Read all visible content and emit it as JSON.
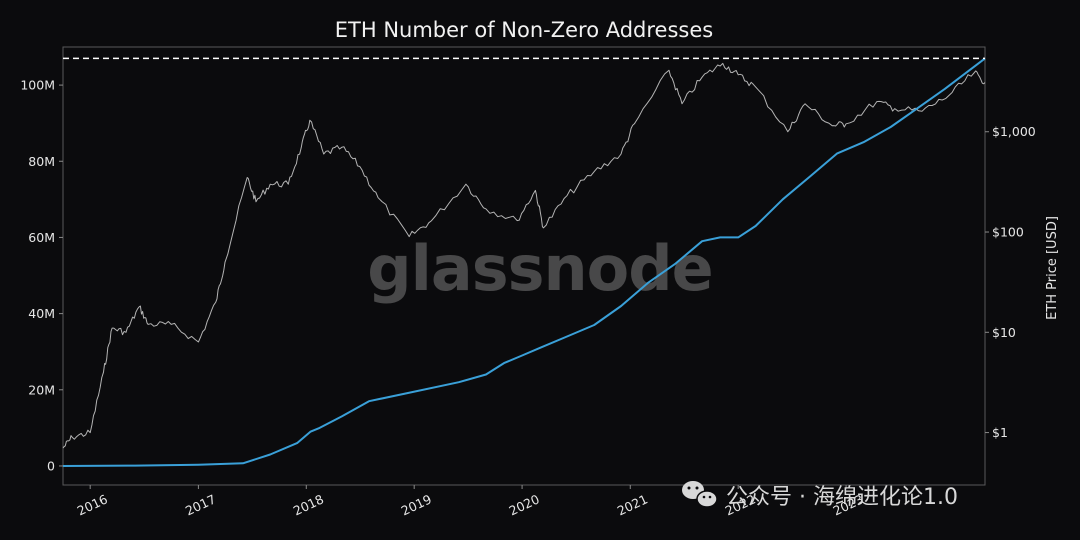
{
  "title": "ETH Number of Non-Zero Addresses",
  "watermark": "glassnode",
  "wechat_caption": "公众号 · 海绵进化论1.0",
  "colors": {
    "background": "#0b0b0d",
    "addresses_line": "#3aa0d8",
    "price_line": "#b4b4b4",
    "ath_line": "#ffffff"
  },
  "chart_data": {
    "type": "line",
    "title": "ETH Number of Non-Zero Addresses",
    "xlabel": "",
    "ylabel_left": "",
    "ylabel_right": "ETH Price [USD]",
    "x_range": [
      "2015-10-01",
      "2024-04-15"
    ],
    "y_left_range": [
      -5000000,
      110000000
    ],
    "y_right_scale": "log",
    "y_right_range": [
      0.3,
      7000
    ],
    "x_ticks": [
      "2016",
      "2017",
      "2018",
      "2019",
      "2020",
      "2021",
      "2022",
      "2023"
    ],
    "y_left_ticks": [
      "0",
      "20M",
      "40M",
      "60M",
      "80M",
      "100M"
    ],
    "y_right_ticks": [
      "$1",
      "$10",
      "$100",
      "$1,000"
    ],
    "reference_line": {
      "style": "dashed",
      "value": 107000000,
      "axis": "left"
    },
    "series": [
      {
        "axis": "left",
        "points": [
          [
            "2015-10-01",
            0
          ],
          [
            "2016-06-01",
            100000
          ],
          [
            "2017-01-01",
            300000
          ],
          [
            "2017-06-01",
            700000
          ],
          [
            "2017-09-01",
            3000000
          ],
          [
            "2017-12-01",
            6000000
          ],
          [
            "2018-01-15",
            9000000
          ],
          [
            "2018-02-15",
            10000000
          ],
          [
            "2018-05-01",
            13000000
          ],
          [
            "2018-08-01",
            17000000
          ],
          [
            "2018-12-01",
            19000000
          ],
          [
            "2019-06-01",
            22000000
          ],
          [
            "2019-09-01",
            24000000
          ],
          [
            "2019-11-01",
            27000000
          ],
          [
            "2020-01-01",
            29000000
          ],
          [
            "2020-03-01",
            31000000
          ],
          [
            "2020-06-01",
            34000000
          ],
          [
            "2020-09-01",
            37000000
          ],
          [
            "2020-12-01",
            42000000
          ],
          [
            "2021-03-01",
            48000000
          ],
          [
            "2021-06-01",
            53000000
          ],
          [
            "2021-09-01",
            59000000
          ],
          [
            "2021-11-01",
            60000000
          ],
          [
            "2022-01-01",
            60000000
          ],
          [
            "2022-03-01",
            63000000
          ],
          [
            "2022-06-01",
            70000000
          ],
          [
            "2022-09-01",
            76000000
          ],
          [
            "2022-12-01",
            82000000
          ],
          [
            "2023-03-01",
            85000000
          ],
          [
            "2023-06-01",
            89000000
          ],
          [
            "2023-09-01",
            94000000
          ],
          [
            "2023-12-01",
            99000000
          ],
          [
            "2024-04-15",
            107000000
          ]
        ]
      },
      {
        "axis": "right",
        "points": [
          [
            "2015-10-01",
            0.7
          ],
          [
            "2015-11-01",
            0.9
          ],
          [
            "2016-01-01",
            1.0
          ],
          [
            "2016-02-15",
            4.0
          ],
          [
            "2016-03-15",
            11.0
          ],
          [
            "2016-05-01",
            10.0
          ],
          [
            "2016-06-15",
            18.0
          ],
          [
            "2016-07-15",
            12.0
          ],
          [
            "2016-10-01",
            12.0
          ],
          [
            "2017-01-01",
            8.0
          ],
          [
            "2017-03-01",
            20.0
          ],
          [
            "2017-04-01",
            50.0
          ],
          [
            "2017-06-15",
            350.0
          ],
          [
            "2017-07-15",
            200.0
          ],
          [
            "2017-09-01",
            300.0
          ],
          [
            "2017-11-01",
            300.0
          ],
          [
            "2017-12-15",
            700.0
          ],
          [
            "2018-01-13",
            1300.0
          ],
          [
            "2018-03-01",
            600.0
          ],
          [
            "2018-05-01",
            700.0
          ],
          [
            "2018-07-01",
            450.0
          ],
          [
            "2018-09-01",
            220.0
          ],
          [
            "2018-12-15",
            90.0
          ],
          [
            "2019-03-01",
            130.0
          ],
          [
            "2019-06-25",
            300.0
          ],
          [
            "2019-09-01",
            170.0
          ],
          [
            "2019-12-15",
            130.0
          ],
          [
            "2020-02-15",
            260.0
          ],
          [
            "2020-03-13",
            110.0
          ],
          [
            "2020-06-01",
            230.0
          ],
          [
            "2020-09-01",
            400.0
          ],
          [
            "2020-12-01",
            600.0
          ],
          [
            "2021-01-15",
            1200.0
          ],
          [
            "2021-05-12",
            4100.0
          ],
          [
            "2021-06-25",
            1900.0
          ],
          [
            "2021-09-01",
            3500.0
          ],
          [
            "2021-11-10",
            4800.0
          ],
          [
            "2022-01-01",
            3700.0
          ],
          [
            "2022-03-01",
            2800.0
          ],
          [
            "2022-06-18",
            1000.0
          ],
          [
            "2022-08-15",
            1900.0
          ],
          [
            "2022-11-15",
            1150.0
          ],
          [
            "2023-01-01",
            1200.0
          ],
          [
            "2023-04-15",
            2000.0
          ],
          [
            "2023-06-15",
            1700.0
          ],
          [
            "2023-09-15",
            1600.0
          ],
          [
            "2023-12-15",
            2300.0
          ],
          [
            "2024-03-10",
            3900.0
          ],
          [
            "2024-04-15",
            3100.0
          ]
        ]
      }
    ]
  }
}
